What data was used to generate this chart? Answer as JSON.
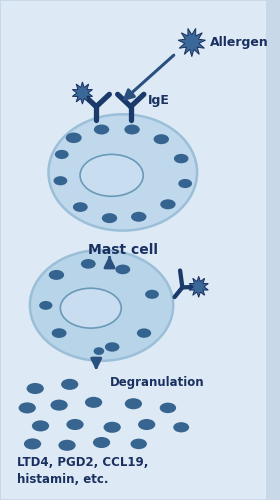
{
  "bg_outer": "#c8d8e8",
  "bg_rounded": "#ddeaf5",
  "cell1_body": "#9bbfd8",
  "cell1_light": "#c0d8ec",
  "cell1_edge": "#6a9ab8",
  "cell2_body": "#9bbfd8",
  "cell2_light": "#b8d4e8",
  "nucleus_fill": "#c8def0",
  "nucleus_edge": "#6a9ab8",
  "granule_color": "#2a5a88",
  "ige_color": "#1a3a6a",
  "allergen_color": "#3a6898",
  "arrow_color": "#2a5080",
  "text_color": "#1a3060",
  "allergen_label": "Allergen",
  "ige_label": "IgE",
  "mast_cell_label": "Mast cell",
  "degranulation_label": "Degranulation",
  "product_label": "LTD4, PGD2, CCL19,\nhistamin, etc."
}
